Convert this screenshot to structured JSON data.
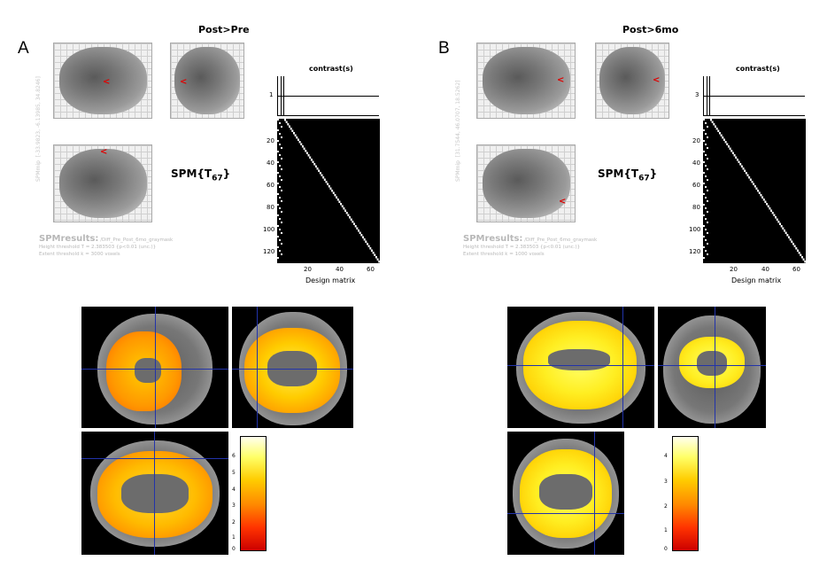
{
  "panels": [
    {
      "letter": "A",
      "contrast_title": "Post>Pre",
      "spm_label": "SPM{T",
      "spm_df": "67",
      "contrast_header": "contrast(s)",
      "contrast_value": "1",
      "spmmip_label": "SPMmip",
      "coords": "[-33.9823, -6.13985, 34.8246]",
      "results_title": "SPMresults:",
      "results_path": "/Diff_Pre_Post_6mo_graymask",
      "height_threshold": "Height threshold T = 2.383503  {p<0.01 (unc.)}",
      "extent_threshold": "Extent threshold k = 3000 voxels",
      "design_matrix_label": "Design matrix",
      "y_ticks": [
        "20",
        "40",
        "60",
        "80",
        "100",
        "120"
      ],
      "x_ticks": [
        "20",
        "40",
        "60"
      ],
      "colorbar_ticks": [
        "6",
        "5",
        "4",
        "3",
        "2",
        "1",
        "0"
      ]
    },
    {
      "letter": "B",
      "contrast_title": "Post>6mo",
      "spm_label": "SPM{T",
      "spm_df": "67",
      "contrast_header": "contrast(s)",
      "contrast_value": "3",
      "spmmip_label": "SPMmip",
      "coords": "[31.7544, 46.0707, 18.5262]",
      "results_title": "SPMresults:",
      "results_path": "/Diff_Pre_Post_6mo_graymask",
      "height_threshold": "Height threshold T = 2.383503  {p<0.01 (unc.)}",
      "extent_threshold": "Extent threshold k = 1000 voxels",
      "design_matrix_label": "Design matrix",
      "y_ticks": [
        "20",
        "40",
        "60",
        "80",
        "100",
        "120"
      ],
      "x_ticks": [
        "20",
        "40",
        "60"
      ],
      "colorbar_ticks": [
        "4",
        "3",
        "2",
        "1",
        "0"
      ]
    }
  ],
  "icons": {
    "mip_marker": "red-arrowhead-marker"
  },
  "colors": {
    "crosshair": "#2233aa",
    "colormap": [
      "#ffffee",
      "#ffff66",
      "#ffcc00",
      "#ff8800",
      "#ff3300",
      "#cc0000"
    ]
  }
}
